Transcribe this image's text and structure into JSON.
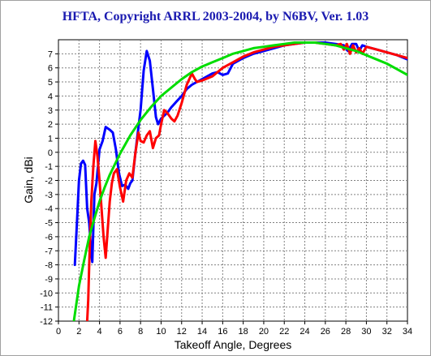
{
  "window": {
    "title": "HFTA, Copyright ARRL 2003-2004, by N6BV, Ver. 1.03"
  },
  "chart_data": {
    "type": "line",
    "title": "HFTA, Copyright ARRL 2003-2004, by N6BV, Ver. 1.03",
    "xlabel": "Takeoff Angle, Degrees",
    "ylabel": "Gain, dBi",
    "xlim": [
      0,
      34
    ],
    "ylim": [
      -12,
      8
    ],
    "x_ticks": [
      0,
      2,
      4,
      6,
      8,
      10,
      12,
      14,
      16,
      18,
      20,
      22,
      24,
      26,
      28,
      30,
      32,
      34
    ],
    "y_ticks": [
      7,
      6,
      5,
      4,
      3,
      2,
      1,
      0,
      -1,
      -2,
      -3,
      -4,
      -5,
      -6,
      -7,
      -8,
      -9,
      -10,
      -11,
      -12
    ],
    "grid": true,
    "grid_style": "dashed",
    "legend": false,
    "series": [
      {
        "color": "#0000ff",
        "x": [
          1.6,
          1.8,
          2.0,
          2.2,
          2.4,
          2.6,
          2.8,
          3.0,
          3.2,
          3.3,
          3.5,
          3.7,
          4.0,
          4.3,
          4.6,
          5.0,
          5.3,
          5.6,
          5.9,
          6.2,
          6.5,
          6.8,
          7.0,
          7.2,
          7.5,
          7.8,
          8.0,
          8.3,
          8.6,
          8.9,
          9.2,
          9.5,
          9.7,
          10.0,
          10.3,
          10.6,
          11.0,
          11.5,
          12.0,
          12.5,
          13.0,
          13.5,
          14.0,
          14.5,
          15.0,
          15.5,
          16.0,
          16.5,
          17.0,
          18,
          19,
          20,
          21,
          22,
          23,
          24,
          25,
          26,
          27,
          27.8,
          28.2,
          28.6,
          29.0,
          29.3,
          29.6,
          30,
          31,
          32,
          33,
          34
        ],
        "y": [
          -8.0,
          -5.0,
          -2.0,
          -0.8,
          -0.6,
          -0.9,
          -4.0,
          -5.0,
          -7.2,
          -7.8,
          -3.0,
          -2.2,
          0.2,
          0.8,
          1.8,
          1.6,
          1.4,
          0.2,
          -1.5,
          -2.4,
          -2.3,
          -2.6,
          -2.2,
          -2.0,
          0.0,
          1.8,
          3.0,
          5.8,
          7.2,
          6.5,
          4.5,
          2.5,
          2.0,
          2.4,
          2.6,
          2.8,
          3.2,
          3.6,
          4.0,
          4.5,
          4.8,
          5.0,
          5.2,
          5.4,
          5.6,
          5.7,
          5.5,
          5.6,
          6.3,
          6.7,
          7.0,
          7.2,
          7.4,
          7.6,
          7.7,
          7.8,
          7.8,
          7.8,
          7.7,
          7.6,
          7.2,
          7.7,
          7.7,
          7.2,
          7.6,
          7.5,
          7.3,
          7.1,
          6.9,
          6.6
        ]
      },
      {
        "color": "#ff0000",
        "x": [
          2.8,
          2.9,
          3.0,
          3.2,
          3.4,
          3.6,
          3.8,
          4.0,
          4.2,
          4.4,
          4.6,
          4.8,
          5.0,
          5.2,
          5.4,
          5.7,
          6.0,
          6.3,
          6.6,
          6.9,
          7.2,
          7.5,
          7.8,
          8.0,
          8.3,
          8.6,
          8.9,
          9.2,
          9.5,
          9.8,
          10.0,
          10.3,
          10.6,
          11.0,
          11.3,
          11.6,
          12.0,
          12.5,
          13.0,
          13.3,
          13.5,
          14.0,
          15.0,
          16.0,
          17,
          18,
          19,
          20,
          21,
          22,
          23,
          24,
          25,
          26,
          27,
          27.5,
          27.8,
          28.1,
          28.4,
          28.7,
          29.0,
          29.3,
          29.6,
          30,
          31,
          32,
          33,
          34
        ],
        "y": [
          -12.0,
          -10.5,
          -8.0,
          -3.5,
          -1.0,
          0.8,
          -0.3,
          -2.0,
          -4.0,
          -6.0,
          -7.5,
          -5.5,
          -3.5,
          -2.2,
          -1.5,
          -1.2,
          -2.5,
          -3.5,
          -2.0,
          -1.5,
          -1.8,
          0.0,
          1.4,
          0.8,
          0.7,
          1.2,
          1.5,
          0.3,
          1.0,
          1.2,
          2.0,
          3.0,
          2.8,
          2.4,
          2.2,
          2.6,
          3.5,
          4.8,
          5.6,
          5.2,
          5.0,
          5.1,
          5.4,
          6.0,
          6.4,
          6.8,
          7.1,
          7.3,
          7.5,
          7.6,
          7.7,
          7.8,
          7.8,
          7.7,
          7.6,
          7.7,
          7.3,
          7.7,
          7.0,
          7.6,
          7.1,
          7.4,
          7.0,
          7.5,
          7.3,
          7.1,
          6.9,
          6.7
        ]
      },
      {
        "color": "#00dd00",
        "x": [
          1.5,
          2,
          2.5,
          3,
          3.5,
          4,
          4.5,
          5,
          6,
          7,
          8,
          9,
          10,
          11,
          12,
          13,
          14,
          15,
          16,
          17,
          18,
          19,
          20,
          21,
          22,
          23,
          24,
          25,
          26,
          27,
          28,
          29,
          30,
          31,
          32,
          33,
          34
        ],
        "y": [
          -12.0,
          -9.5,
          -7.7,
          -6.0,
          -4.7,
          -3.5,
          -2.5,
          -1.6,
          -0.1,
          1.2,
          2.3,
          3.2,
          4.0,
          4.6,
          5.2,
          5.7,
          6.1,
          6.4,
          6.7,
          7.0,
          7.2,
          7.4,
          7.5,
          7.6,
          7.7,
          7.8,
          7.8,
          7.8,
          7.7,
          7.6,
          7.4,
          7.2,
          6.9,
          6.6,
          6.3,
          5.9,
          5.5
        ]
      }
    ]
  }
}
